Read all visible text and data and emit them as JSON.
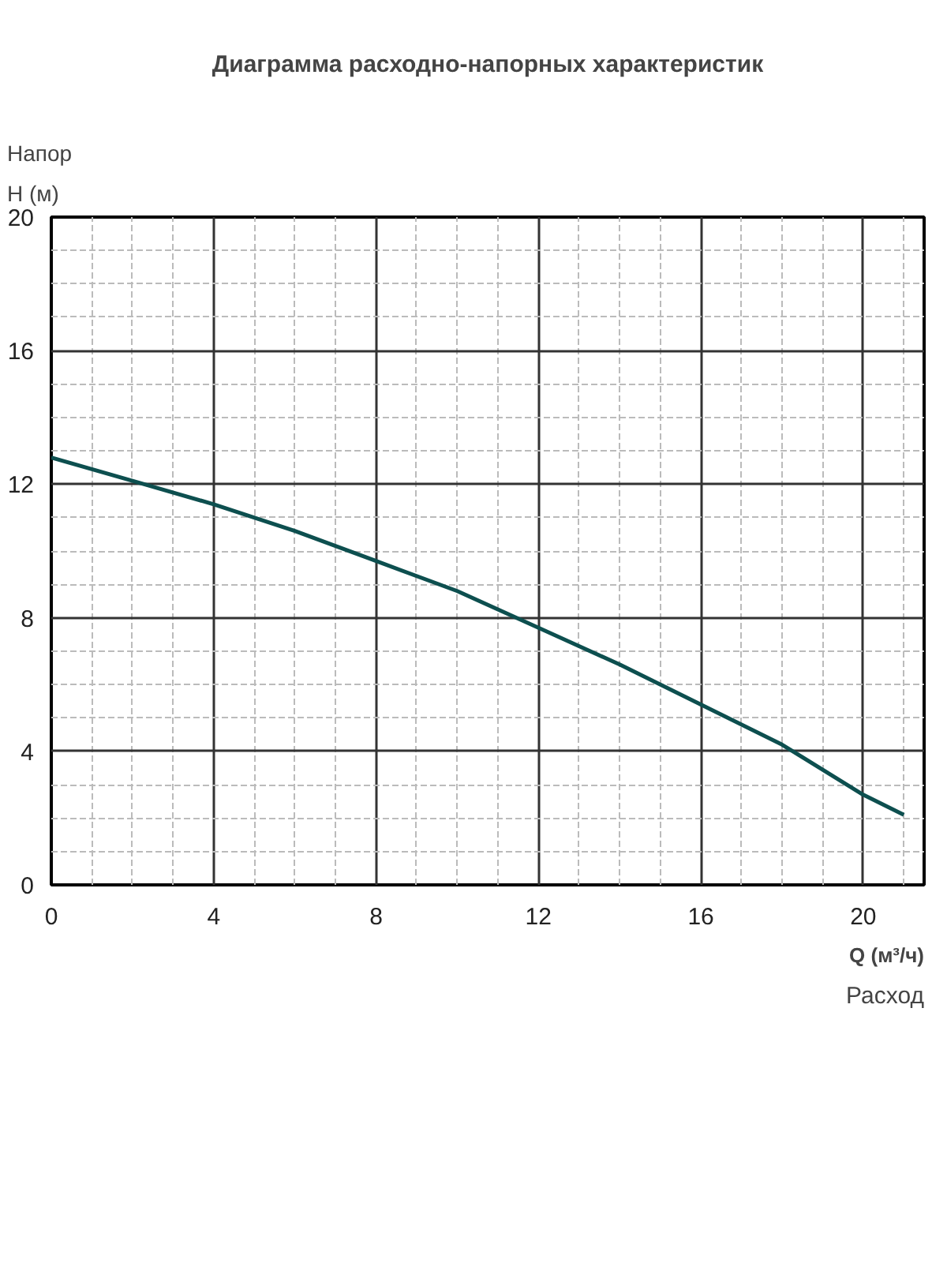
{
  "chart_data": {
    "type": "line",
    "title": "Диаграмма расходно-напорных характеристик",
    "ylabel": "Напор\nH (м)",
    "xlabel": "Q (м³/ч)\nРасход",
    "x": [
      0,
      2,
      4,
      6,
      8,
      10,
      12,
      14,
      16,
      18,
      20,
      21
    ],
    "series": [
      {
        "color": "#0d4f4f",
        "values": [
          12.8,
          12.1,
          11.4,
          10.6,
          9.7,
          8.8,
          7.7,
          6.6,
          5.4,
          4.2,
          2.7,
          2.1
        ]
      }
    ],
    "xlim": [
      0,
      21.5
    ],
    "ylim": [
      0,
      20
    ],
    "xticks": [
      0,
      4,
      8,
      12,
      16,
      20
    ],
    "yticks": [
      0,
      4,
      8,
      12,
      16,
      20
    ],
    "grid": true,
    "line_style": "solid"
  }
}
